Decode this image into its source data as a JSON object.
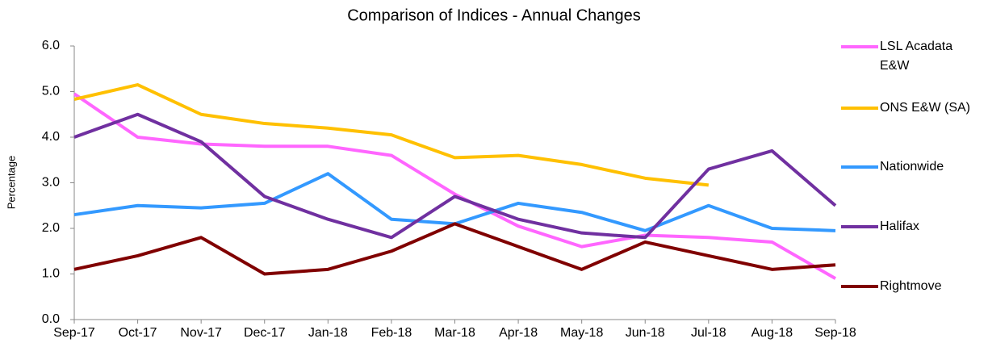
{
  "chart_data": {
    "type": "line",
    "title": "Comparison of Indices - Annual Changes",
    "y_label": "Percentage",
    "categories": [
      "Sep-17",
      "Oct-17",
      "Nov-17",
      "Dec-17",
      "Jan-18",
      "Feb-18",
      "Mar-18",
      "Apr-18",
      "May-18",
      "Jun-18",
      "Jul-18",
      "Aug-18",
      "Sep-18"
    ],
    "ylim": [
      0,
      6
    ],
    "yticks": [
      {
        "value": 0,
        "label": "0.0"
      },
      {
        "value": 1,
        "label": "1.0"
      },
      {
        "value": 2,
        "label": "2.0"
      },
      {
        "value": 3,
        "label": "3.0"
      },
      {
        "value": 4,
        "label": "4.0"
      },
      {
        "value": 5,
        "label": "5.0"
      },
      {
        "value": 6,
        "label": "6.0"
      }
    ],
    "grid": false,
    "legend": "right",
    "series": [
      {
        "name": "LSL Acadata E&W",
        "color": "#ff66ff",
        "values": [
          4.95,
          4.0,
          3.85,
          3.8,
          3.8,
          3.6,
          2.75,
          2.05,
          1.6,
          1.85,
          1.8,
          1.7,
          0.9
        ]
      },
      {
        "name": "ONS E&W (SA)",
        "color": "#ffc000",
        "values": [
          4.83,
          5.15,
          4.5,
          4.3,
          4.2,
          4.05,
          3.55,
          3.6,
          3.4,
          3.1,
          2.95,
          null,
          null
        ]
      },
      {
        "name": "Nationwide",
        "color": "#3399ff",
        "values": [
          2.3,
          2.5,
          2.45,
          2.55,
          3.2,
          2.2,
          2.1,
          2.55,
          2.35,
          1.95,
          2.5,
          2.0,
          1.95
        ]
      },
      {
        "name": "Halifax",
        "color": "#7030a0",
        "values": [
          4.0,
          4.5,
          3.9,
          2.7,
          2.2,
          1.8,
          2.7,
          2.2,
          1.9,
          1.8,
          3.3,
          3.7,
          2.5
        ]
      },
      {
        "name": "Rightmove",
        "color": "#800000",
        "values": [
          1.1,
          1.4,
          1.8,
          1.0,
          1.1,
          1.5,
          2.1,
          1.6,
          1.1,
          1.7,
          1.4,
          1.1,
          1.2
        ]
      }
    ]
  }
}
